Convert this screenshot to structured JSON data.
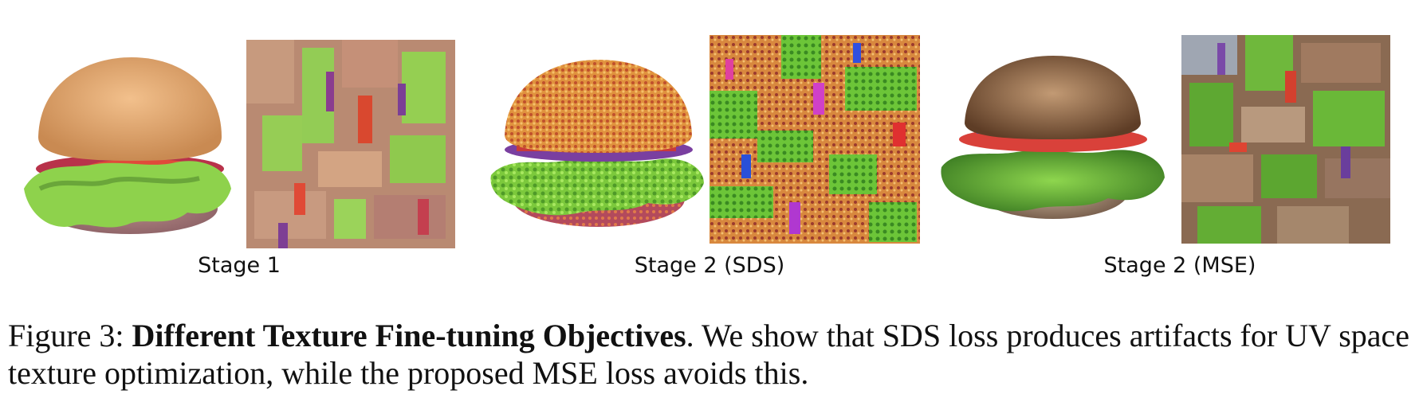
{
  "figure": {
    "panels": [
      {
        "label": "Stage 1",
        "render_icon": "burger-render-smooth",
        "texture_icon": "uv-texture-map-blurry"
      },
      {
        "label": "Stage 2 (SDS)",
        "render_icon": "burger-render-noisy",
        "texture_icon": "uv-texture-map-artifacts"
      },
      {
        "label": "Stage 2 (MSE)",
        "render_icon": "burger-render-realistic",
        "texture_icon": "uv-texture-map-clean"
      }
    ],
    "caption": {
      "prefix": "Figure 3: ",
      "bold": "Different Texture Fine-tuning Objectives",
      "rest": ". We show that SDS loss produces artifacts for UV space texture optimization, while the proposed MSE loss avoids this."
    }
  }
}
